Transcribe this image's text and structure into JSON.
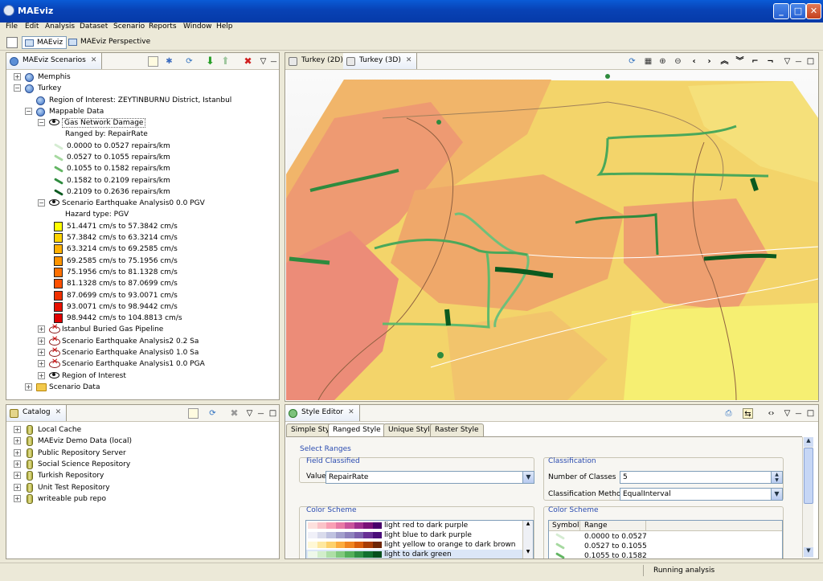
{
  "window": {
    "title": "MAEviz"
  },
  "menu": [
    "File",
    "Edit",
    "Analysis",
    "Dataset",
    "Scenario",
    "Reports",
    "Window",
    "Help"
  ],
  "perspectives": [
    {
      "label": "MAEviz",
      "selected": true
    },
    {
      "label": "MAEviz Perspective",
      "selected": false
    }
  ],
  "scenarios_panel": {
    "tab": "MAEviz Scenarios",
    "tree": [
      {
        "label": "Memphis",
        "indent": 0,
        "expander": "+",
        "icon": "globe"
      },
      {
        "label": "Turkey",
        "indent": 0,
        "expander": "-",
        "icon": "globe"
      },
      {
        "label": "Region of Interest: ZEYTINBURNU District, Istanbul",
        "indent": 1,
        "icon": "globe"
      },
      {
        "label": "Mappable Data",
        "indent": 1,
        "expander": "-",
        "icon": "globe"
      },
      {
        "label": "Gas Network Damage",
        "indent": 2,
        "expander": "-",
        "icon": "eye",
        "selected": true
      },
      {
        "label": "Ranged by: RepairRate",
        "indent": 3
      },
      {
        "label": "0.0000 to 0.0527 repairs/km",
        "indent": 3,
        "icon": "line",
        "color": "#d5ecd2"
      },
      {
        "label": "0.0527 to 0.1055 repairs/km",
        "indent": 3,
        "icon": "line",
        "color": "#a6d9a0"
      },
      {
        "label": "0.1055 to 0.1582 repairs/km",
        "indent": 3,
        "icon": "line",
        "color": "#62b562"
      },
      {
        "label": "0.1582 to 0.2109 repairs/km",
        "indent": 3,
        "icon": "line",
        "color": "#2e8b3e"
      },
      {
        "label": "0.2109 to 0.2636 repairs/km",
        "indent": 3,
        "icon": "line",
        "color": "#0b5a1f"
      },
      {
        "label": "Scenario Earthquake Analysis0 0.0 PGV",
        "indent": 2,
        "expander": "-",
        "icon": "eye"
      },
      {
        "label": "Hazard type: PGV",
        "indent": 3
      },
      {
        "label": "51.4471 cm/s to 57.3842 cm/s",
        "indent": 3,
        "icon": "swatch",
        "color": "#ffff00"
      },
      {
        "label": "57.3842 cm/s to 63.3214 cm/s",
        "indent": 3,
        "icon": "swatch",
        "color": "#ffd200"
      },
      {
        "label": "63.3214 cm/s to 69.2585 cm/s",
        "indent": 3,
        "icon": "swatch",
        "color": "#ffb000"
      },
      {
        "label": "69.2585 cm/s to 75.1956 cm/s",
        "indent": 3,
        "icon": "swatch",
        "color": "#ff9400"
      },
      {
        "label": "75.1956 cm/s to 81.1328 cm/s",
        "indent": 3,
        "icon": "swatch",
        "color": "#ff7000"
      },
      {
        "label": "81.1328 cm/s to 87.0699 cm/s",
        "indent": 3,
        "icon": "swatch",
        "color": "#ff5000"
      },
      {
        "label": "87.0699 cm/s to 93.0071 cm/s",
        "indent": 3,
        "icon": "swatch",
        "color": "#f03000"
      },
      {
        "label": "93.0071 cm/s to 98.9442 cm/s",
        "indent": 3,
        "icon": "swatch",
        "color": "#e81000"
      },
      {
        "label": "98.9442 cm/s to 104.8813 cm/s",
        "indent": 3,
        "icon": "swatch",
        "color": "#e00000"
      },
      {
        "label": "Istanbul Buried Gas Pipeline",
        "indent": 2,
        "expander": "+",
        "icon": "eyex"
      },
      {
        "label": "Scenario Earthquake Analysis2 0.2 Sa",
        "indent": 2,
        "expander": "+",
        "icon": "eyex"
      },
      {
        "label": "Scenario Earthquake Analysis0 1.0 Sa",
        "indent": 2,
        "expander": "+",
        "icon": "eyex"
      },
      {
        "label": "Scenario Earthquake Analysis1 0.0 PGA",
        "indent": 2,
        "expander": "+",
        "icon": "eyex"
      },
      {
        "label": "Region of Interest",
        "indent": 2,
        "expander": "+",
        "icon": "eye"
      },
      {
        "label": "Scenario Data",
        "indent": 1,
        "expander": "+",
        "icon": "folder"
      }
    ]
  },
  "catalog_panel": {
    "tab": "Catalog",
    "items": [
      "Local Cache",
      "MAEviz Demo Data (local)",
      "Public Repository Server",
      "Social Science Repository",
      "Turkish Repository",
      "Unit Test Repository",
      "writeable pub repo"
    ]
  },
  "map_editor": {
    "tabs": [
      {
        "label": "Turkey (2D)",
        "selected": false
      },
      {
        "label": "Turkey (3D)",
        "selected": true
      }
    ]
  },
  "style_editor": {
    "tab": "Style Editor",
    "subtabs": [
      {
        "label": "Simple Style",
        "selected": false
      },
      {
        "label": "Ranged Style",
        "selected": true
      },
      {
        "label": "Unique Style",
        "selected": false
      },
      {
        "label": "Raster Style",
        "selected": false
      }
    ],
    "select_ranges": "Select Ranges",
    "field_classified": {
      "title": "Field Classified",
      "value_label": "Value",
      "value": "RepairRate"
    },
    "classification": {
      "title": "Classification",
      "num_classes_label": "Number of Classes",
      "num_classes": "5",
      "method_label": "Classification Method",
      "method": "EqualInterval"
    },
    "color_scheme_left": {
      "title": "Color Scheme",
      "schemes": [
        {
          "label": "light red to dark purple",
          "colors": [
            "#fde0dd",
            "#fbc3c8",
            "#f99fb4",
            "#e879a5",
            "#c9539b",
            "#9f2d8c",
            "#7a1177",
            "#49006a"
          ]
        },
        {
          "label": "light blue to dark purple",
          "colors": [
            "#f0f0f8",
            "#d9dbec",
            "#bfc2e0",
            "#a29fcc",
            "#8e82bd",
            "#7b5fad",
            "#672f95",
            "#4a0d7a"
          ]
        },
        {
          "label": "light yellow to orange to dark brown",
          "colors": [
            "#fff8d6",
            "#fee8a0",
            "#fdd16c",
            "#fcac3e",
            "#f08420",
            "#d85c0c",
            "#a83c05",
            "#6e2504"
          ]
        },
        {
          "label": "light to dark green",
          "colors": [
            "#eef8ea",
            "#d2eecb",
            "#aedfa6",
            "#80c97d",
            "#54b05a",
            "#2f9043",
            "#12702e",
            "#054f1c"
          ]
        }
      ]
    },
    "color_scheme_right": {
      "title": "Color Scheme",
      "col_symbol": "Symbol",
      "col_range": "Range",
      "rows": [
        {
          "range": "0.0000 to 0.0527",
          "color": "#d5ecd2"
        },
        {
          "range": "0.0527 to 0.1055",
          "color": "#a6d9a0"
        },
        {
          "range": "0.1055 to 0.1582",
          "color": "#62b562"
        }
      ]
    }
  },
  "status": {
    "text": "Running analysis"
  }
}
